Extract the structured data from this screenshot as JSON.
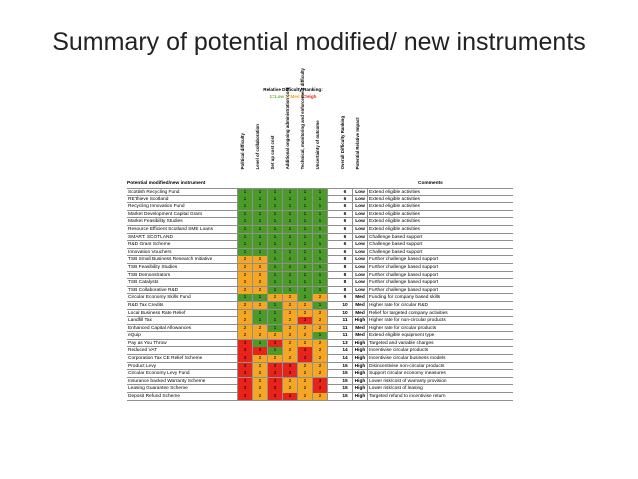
{
  "slide": {
    "title": "Summary of potential modified/ new instruments"
  },
  "table": {
    "ranking_title": "Relative Difficulty Ranking:",
    "ranking_legend": "1=Low 2=Med 3=High",
    "column_headers": [
      "Political difficulty",
      "Level of collaboration",
      "Set up cost cost",
      "Additional ongoing administration cost",
      "Technical, monitoring and enforcement difficulty",
      "Uncertainty of outcome",
      "Overall Difficulty Ranking",
      "Potential Relative Impact"
    ],
    "instrument_header": "Potential modified/new instrument",
    "comments_header": "Comments",
    "colors": {
      "1": "#4c9a2a",
      "2": "#f5a623",
      "3": "#e8231c"
    },
    "rows": [
      {
        "name": "Scottish Recycling Fund",
        "scores": [
          "1",
          "1",
          "1",
          "1",
          "1",
          "1"
        ],
        "overall": "6",
        "impact": "Low",
        "comment": "Extend eligible activities"
      },
      {
        "name": "RE'thieve Scotland",
        "scores": [
          "1",
          "1",
          "1",
          "1",
          "1",
          "1"
        ],
        "overall": "6",
        "impact": "Low",
        "comment": "Extend eligible activities"
      },
      {
        "name": "Recycling Innovation Fund",
        "scores": [
          "1",
          "1",
          "1",
          "1",
          "1",
          "1"
        ],
        "overall": "6",
        "impact": "Low",
        "comment": "Extend eligible activities"
      },
      {
        "name": "Market Development Capital Grant",
        "scores": [
          "1",
          "1",
          "1",
          "1",
          "1",
          "1"
        ],
        "overall": "6",
        "impact": "Low",
        "comment": "Extend eligible activities"
      },
      {
        "name": "Market Feasibility Studies",
        "scores": [
          "1",
          "1",
          "1",
          "1",
          "1",
          "1"
        ],
        "overall": "6",
        "impact": "Low",
        "comment": "Extend eligible activities"
      },
      {
        "name": "Resource Efficient Scotland SME Loans",
        "scores": [
          "1",
          "1",
          "1",
          "1",
          "1",
          "1"
        ],
        "overall": "6",
        "impact": "Low",
        "comment": "Extend eligible activities"
      },
      {
        "name": "SMART: SCOTLAND",
        "scores": [
          "1",
          "1",
          "1",
          "1",
          "1",
          "1"
        ],
        "overall": "6",
        "impact": "Low",
        "comment": "Challenge based support"
      },
      {
        "name": "R&D Grant Scheme",
        "scores": [
          "1",
          "1",
          "1",
          "1",
          "1",
          "1"
        ],
        "overall": "6",
        "impact": "Low",
        "comment": "Challenge based support"
      },
      {
        "name": "Innovation Vouchers",
        "scores": [
          "1",
          "1",
          "1",
          "1",
          "1",
          "1"
        ],
        "overall": "6",
        "impact": "Low",
        "comment": "Challenge based support"
      },
      {
        "name": "TSB Small Business Research Initiative",
        "scores": [
          "2",
          "2",
          "1",
          "1",
          "1",
          "1"
        ],
        "overall": "8",
        "impact": "Low",
        "comment": "Further challenge based support"
      },
      {
        "name": "TSB Feasibility Studies",
        "scores": [
          "2",
          "2",
          "1",
          "1",
          "1",
          "1"
        ],
        "overall": "8",
        "impact": "Low",
        "comment": "Further challenge based support"
      },
      {
        "name": "TSB Demonstrators",
        "scores": [
          "2",
          "2",
          "1",
          "1",
          "1",
          "1"
        ],
        "overall": "8",
        "impact": "Low",
        "comment": "Further challenge based support"
      },
      {
        "name": "TSB Catalysts",
        "scores": [
          "2",
          "2",
          "1",
          "1",
          "1",
          "1"
        ],
        "overall": "8",
        "impact": "Low",
        "comment": "Further challenge based support"
      },
      {
        "name": "TSB Collaborative R&D",
        "scores": [
          "2",
          "2",
          "1",
          "1",
          "1",
          "1"
        ],
        "overall": "8",
        "impact": "Low",
        "comment": "Further challenge based support"
      },
      {
        "name": "Circular Economy Skills Fund",
        "scores": [
          "1",
          "1",
          "2",
          "2",
          "1",
          "2"
        ],
        "overall": "9",
        "impact": "Med",
        "comment": "Funding for company based skills"
      },
      {
        "name": "R&D Tax Credits",
        "scores": [
          "2",
          "2",
          "1",
          "2",
          "2",
          "1"
        ],
        "overall": "10",
        "impact": "Med",
        "comment": "Higher rate for circular R&D"
      },
      {
        "name": "Local Business Rate Relief",
        "scores": [
          "2",
          "1",
          "1",
          "2",
          "2",
          "2"
        ],
        "overall": "10",
        "impact": "Med",
        "comment": "Relief for targeted company activities"
      },
      {
        "name": "Landfill Tax",
        "scores": [
          "2",
          "1",
          "1",
          "2",
          "3",
          "2"
        ],
        "overall": "11",
        "impact": "High",
        "comment": "Higher rate for non-circular products"
      },
      {
        "name": "Enhanced Capital Allowances",
        "scores": [
          "2",
          "2",
          "1",
          "2",
          "2",
          "2"
        ],
        "overall": "11",
        "impact": "Med",
        "comment": "Higher rate for circular products"
      },
      {
        "name": "eQuip",
        "scores": [
          "2",
          "2",
          "2",
          "2",
          "2",
          "1"
        ],
        "overall": "11",
        "impact": "Med",
        "comment": "Extend eligible equipment type"
      },
      {
        "name": "Pay as You Throw",
        "scores": [
          "3",
          "1",
          "3",
          "2",
          "2",
          "2"
        ],
        "overall": "13",
        "impact": "High",
        "comment": "Targeted and variable charges"
      },
      {
        "name": "Reduced VAT",
        "scores": [
          "3",
          "3",
          "1",
          "2",
          "3",
          "2"
        ],
        "overall": "14",
        "impact": "High",
        "comment": "Incentivise circular products"
      },
      {
        "name": "Corporation Tax CE Relief Scheme",
        "scores": [
          "3",
          "2",
          "2",
          "2",
          "3",
          "2"
        ],
        "overall": "14",
        "impact": "High",
        "comment": "Incentivise circular business models"
      },
      {
        "name": "Product Levy",
        "scores": [
          "3",
          "2",
          "3",
          "3",
          "2",
          "2"
        ],
        "overall": "15",
        "impact": "High",
        "comment": "Disincentivise non-circular products"
      },
      {
        "name": "Circular Economy Levy Fund",
        "scores": [
          "3",
          "2",
          "3",
          "3",
          "2",
          "2"
        ],
        "overall": "15",
        "impact": "High",
        "comment": "Support circular economy measures"
      },
      {
        "name": "Insurance backed Warranty Scheme",
        "scores": [
          "3",
          "2",
          "3",
          "2",
          "2",
          "3"
        ],
        "overall": "15",
        "impact": "High",
        "comment": "Lower risk/cost of warranty provision"
      },
      {
        "name": "Leasing Guarantee Scheme",
        "scores": [
          "3",
          "2",
          "3",
          "2",
          "2",
          "3"
        ],
        "overall": "15",
        "impact": "High",
        "comment": "Lower risk/cost of leasing"
      },
      {
        "name": "Deposit Refund Scheme",
        "scores": [
          "3",
          "2",
          "3",
          "3",
          "2",
          "2"
        ],
        "overall": "15",
        "impact": "High",
        "comment": "Targeted refund to incentivise return"
      }
    ]
  }
}
